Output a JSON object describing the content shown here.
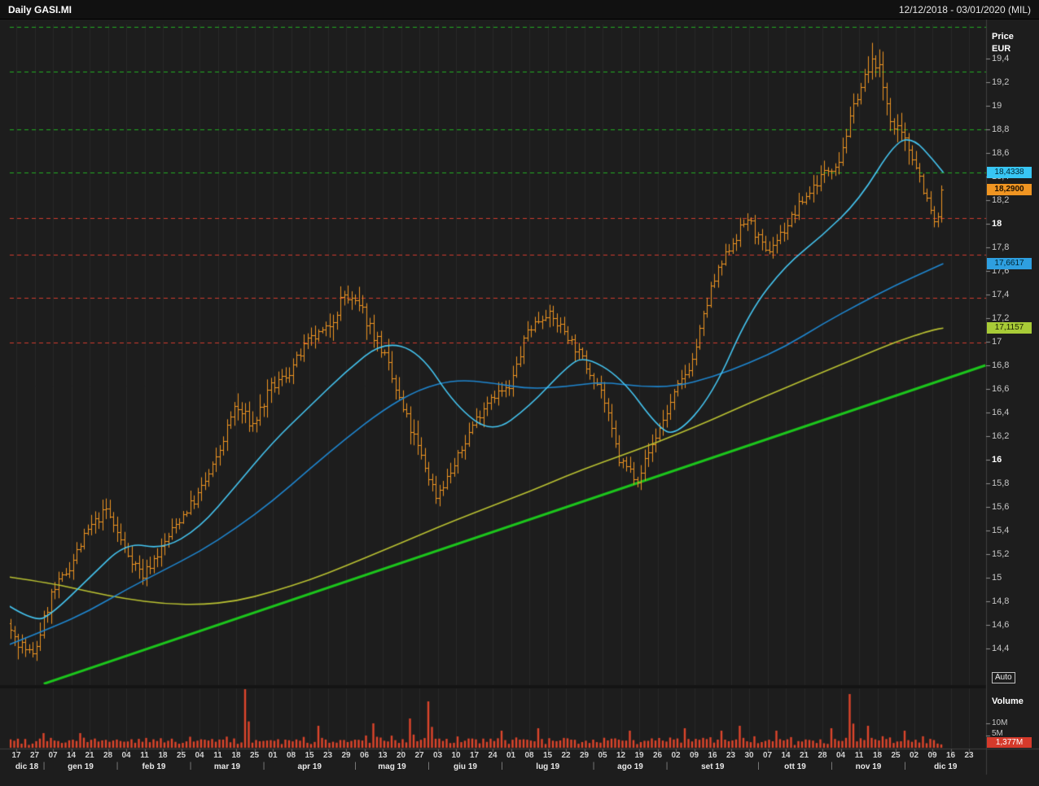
{
  "topbar": {
    "title": "Daily GASI.MI",
    "period": "12/12/2018 - 03/01/2020 (MIL)"
  },
  "price_axis": {
    "label_line1": "Price",
    "label_line2": "EUR",
    "ticks": [
      "19,4",
      "19,2",
      "19",
      "18,8",
      "18,6",
      "18,4",
      "18,2",
      "18",
      "17,8",
      "17,6",
      "17,4",
      "17,2",
      "17",
      "16,8",
      "16,6",
      "16,4",
      "16,2",
      "16",
      "15,8",
      "15,6",
      "15,4",
      "15,2",
      "15",
      "14,8",
      "14,6",
      "14,4"
    ],
    "bold_ticks": [
      "18",
      "16"
    ],
    "auto_button": "Auto"
  },
  "badges": [
    {
      "name": "ma-fast-value-badge",
      "text": "18,4338",
      "value": 18.4338,
      "bg": "#38c6f4",
      "fg": "#002531",
      "bold": false
    },
    {
      "name": "last-price-badge",
      "text": "18,2900",
      "value": 18.29,
      "bg": "#f09522",
      "fg": "#201200",
      "bold": true
    },
    {
      "name": "ma-mid-value-badge",
      "text": "17,6617",
      "value": 17.6617,
      "bg": "#2e9fe0",
      "fg": "#002531",
      "bold": false
    },
    {
      "name": "ma-long-value-badge",
      "text": "17,1157",
      "value": 17.1157,
      "bg": "#a8cb37",
      "fg": "#1a2000",
      "bold": false
    }
  ],
  "volume_pane": {
    "label": "Volume",
    "ticks": [
      {
        "text": "10M",
        "value_m": 10
      },
      {
        "text": "5M",
        "value_m": 5
      }
    ],
    "last_badge": {
      "text": "1,377M",
      "value_m": 1.377,
      "bg": "#d63a2b",
      "fg": "#ffffff"
    }
  },
  "x_axis": {
    "week_labels": [
      "17",
      "27",
      "07",
      "14",
      "21",
      "28",
      "04",
      "11",
      "18",
      "25",
      "04",
      "11",
      "18",
      "25",
      "01",
      "08",
      "15",
      "23",
      "29",
      "06",
      "13",
      "20",
      "27",
      "03",
      "10",
      "17",
      "24",
      "01",
      "08",
      "15",
      "22",
      "29",
      "05",
      "12",
      "19",
      "26",
      "02",
      "09",
      "16",
      "23",
      "30",
      "07",
      "14",
      "21",
      "28",
      "04",
      "11",
      "18",
      "25",
      "02",
      "09",
      "16",
      "23"
    ],
    "months": [
      {
        "label": "dic 18",
        "start_week": 0
      },
      {
        "label": "gen 19",
        "start_week": 2
      },
      {
        "label": "feb 19",
        "start_week": 6
      },
      {
        "label": "mar 19",
        "start_week": 10
      },
      {
        "label": "apr 19",
        "start_week": 14
      },
      {
        "label": "mag 19",
        "start_week": 19
      },
      {
        "label": "giu 19",
        "start_week": 23
      },
      {
        "label": "lug 19",
        "start_week": 27
      },
      {
        "label": "ago 19",
        "start_week": 32
      },
      {
        "label": "set 19",
        "start_week": 36
      },
      {
        "label": "ott 19",
        "start_week": 41
      },
      {
        "label": "nov 19",
        "start_week": 45
      },
      {
        "label": "dic 19",
        "start_week": 49
      }
    ]
  },
  "colors": {
    "bg": "#1d1d1d",
    "topbar_bg": "#111111",
    "grid": "#282828",
    "axis_line": "#3f3f3f",
    "tick_text": "#c6c6c6",
    "tick_text_bold": "#ffffff",
    "candle": "#f09522",
    "volume_bar": "#de452b",
    "green_level": "#21ad21",
    "red_level": "#d23c2e",
    "trendline": "#1cc51c",
    "ma_fast": "#45c6f2",
    "ma_mid": "#1f86cf",
    "ma_long": "#bac232",
    "month_text": "#e8e8e8",
    "day_text": "#cfcfcf",
    "separator_text": "#8a8a8a"
  },
  "chart_data": {
    "type": "candlestick",
    "style": "ohlc-bars",
    "symbol": "GASI.MI",
    "timeframe": "Daily",
    "currency": "EUR",
    "visible_period": "12/12/2018 - 03/01/2020",
    "y_range": [
      14.096,
      19.69
    ],
    "last_close": 18.29,
    "lead_closes": [
      14.62,
      14.56,
      14.5
    ],
    "weekly_closes": [
      14.5,
      14.33,
      14.85,
      15.1,
      15.4,
      15.58,
      15.25,
      15.02,
      15.25,
      15.5,
      15.7,
      16.0,
      16.45,
      16.3,
      16.6,
      16.75,
      17.0,
      17.1,
      17.4,
      17.25,
      16.95,
      16.5,
      16.1,
      15.7,
      15.95,
      16.3,
      16.55,
      16.6,
      17.1,
      17.25,
      17.1,
      16.85,
      16.6,
      16.0,
      15.85,
      16.2,
      16.55,
      16.85,
      17.45,
      17.8,
      18.05,
      17.75,
      17.95,
      18.2,
      18.4,
      18.55,
      19.1,
      19.4,
      18.8,
      18.6,
      18.1
    ],
    "final_closes": [
      18.02,
      18.06,
      18.29
    ],
    "levels": {
      "green_dashed": [
        19.67,
        19.29,
        18.8,
        18.4338
      ],
      "red_dashed": [
        18.05,
        17.74,
        17.37,
        16.99
      ]
    },
    "overlays": {
      "ma_fast": {
        "name": "fast moving average",
        "color_key": "ma_fast",
        "last_value": 18.4338,
        "points": [
          [
            -0.6,
            14.78
          ],
          [
            1,
            14.62
          ],
          [
            2,
            14.7
          ],
          [
            4,
            15.0
          ],
          [
            6,
            15.3
          ],
          [
            8,
            15.24
          ],
          [
            10,
            15.42
          ],
          [
            12,
            15.78
          ],
          [
            14,
            16.15
          ],
          [
            16,
            16.45
          ],
          [
            18,
            16.75
          ],
          [
            20,
            17.0
          ],
          [
            22,
            16.92
          ],
          [
            24,
            16.45
          ],
          [
            26,
            16.22
          ],
          [
            28,
            16.45
          ],
          [
            30,
            16.78
          ],
          [
            31,
            16.88
          ],
          [
            33,
            16.7
          ],
          [
            35,
            16.28
          ],
          [
            36,
            16.2
          ],
          [
            38,
            16.55
          ],
          [
            40,
            17.25
          ],
          [
            42,
            17.65
          ],
          [
            44,
            17.9
          ],
          [
            46,
            18.2
          ],
          [
            48,
            18.7
          ],
          [
            49,
            18.72
          ],
          [
            50,
            18.55
          ],
          [
            50.6,
            18.4338
          ]
        ]
      },
      "ma_mid": {
        "name": "slow moving average",
        "color_key": "ma_mid",
        "last_value": 17.6617,
        "points": [
          [
            -0.6,
            14.42
          ],
          [
            2,
            14.58
          ],
          [
            4,
            14.72
          ],
          [
            6,
            14.9
          ],
          [
            8,
            15.06
          ],
          [
            10,
            15.22
          ],
          [
            12,
            15.42
          ],
          [
            14,
            15.65
          ],
          [
            16,
            15.92
          ],
          [
            18,
            16.18
          ],
          [
            20,
            16.42
          ],
          [
            22,
            16.6
          ],
          [
            24,
            16.68
          ],
          [
            26,
            16.65
          ],
          [
            28,
            16.6
          ],
          [
            30,
            16.62
          ],
          [
            32,
            16.66
          ],
          [
            34,
            16.62
          ],
          [
            36,
            16.62
          ],
          [
            38,
            16.7
          ],
          [
            40,
            16.82
          ],
          [
            42,
            16.96
          ],
          [
            44,
            17.15
          ],
          [
            46,
            17.32
          ],
          [
            48,
            17.48
          ],
          [
            50,
            17.62
          ],
          [
            50.6,
            17.6617
          ]
        ]
      },
      "ma_long": {
        "name": "long moving average",
        "color_key": "ma_long",
        "last_value": 17.1157,
        "points": [
          [
            -0.6,
            15.01
          ],
          [
            2,
            14.95
          ],
          [
            4,
            14.88
          ],
          [
            6,
            14.82
          ],
          [
            8,
            14.78
          ],
          [
            10,
            14.77
          ],
          [
            12,
            14.8
          ],
          [
            14,
            14.88
          ],
          [
            16,
            14.98
          ],
          [
            18,
            15.1
          ],
          [
            20,
            15.23
          ],
          [
            22,
            15.36
          ],
          [
            24,
            15.49
          ],
          [
            26,
            15.61
          ],
          [
            28,
            15.73
          ],
          [
            30,
            15.86
          ],
          [
            32,
            15.98
          ],
          [
            34,
            16.09
          ],
          [
            36,
            16.21
          ],
          [
            38,
            16.34
          ],
          [
            40,
            16.48
          ],
          [
            42,
            16.61
          ],
          [
            44,
            16.74
          ],
          [
            46,
            16.87
          ],
          [
            48,
            17.0
          ],
          [
            50,
            17.1
          ],
          [
            50.6,
            17.1157
          ]
        ]
      },
      "trendline": {
        "name": "support trendline",
        "color_key": "trendline",
        "points": [
          [
            1.5,
            14.1
          ],
          [
            52.9,
            16.8
          ]
        ]
      }
    },
    "volume": {
      "unit": "M",
      "axis_ticks_m": [
        10,
        5
      ],
      "last_value_m": 1.377,
      "spikes": [
        [
          1,
          6
        ],
        [
          3,
          6
        ],
        [
          12,
          24
        ],
        [
          16,
          9
        ],
        [
          19,
          10
        ],
        [
          21,
          12
        ],
        [
          22,
          19
        ],
        [
          26,
          7
        ],
        [
          28,
          8
        ],
        [
          33,
          7
        ],
        [
          36,
          8
        ],
        [
          38,
          7
        ],
        [
          39,
          9
        ],
        [
          41,
          7
        ],
        [
          44,
          8
        ],
        [
          45,
          22
        ],
        [
          46,
          9
        ],
        [
          48,
          7
        ],
        [
          50,
          8
        ]
      ]
    }
  }
}
